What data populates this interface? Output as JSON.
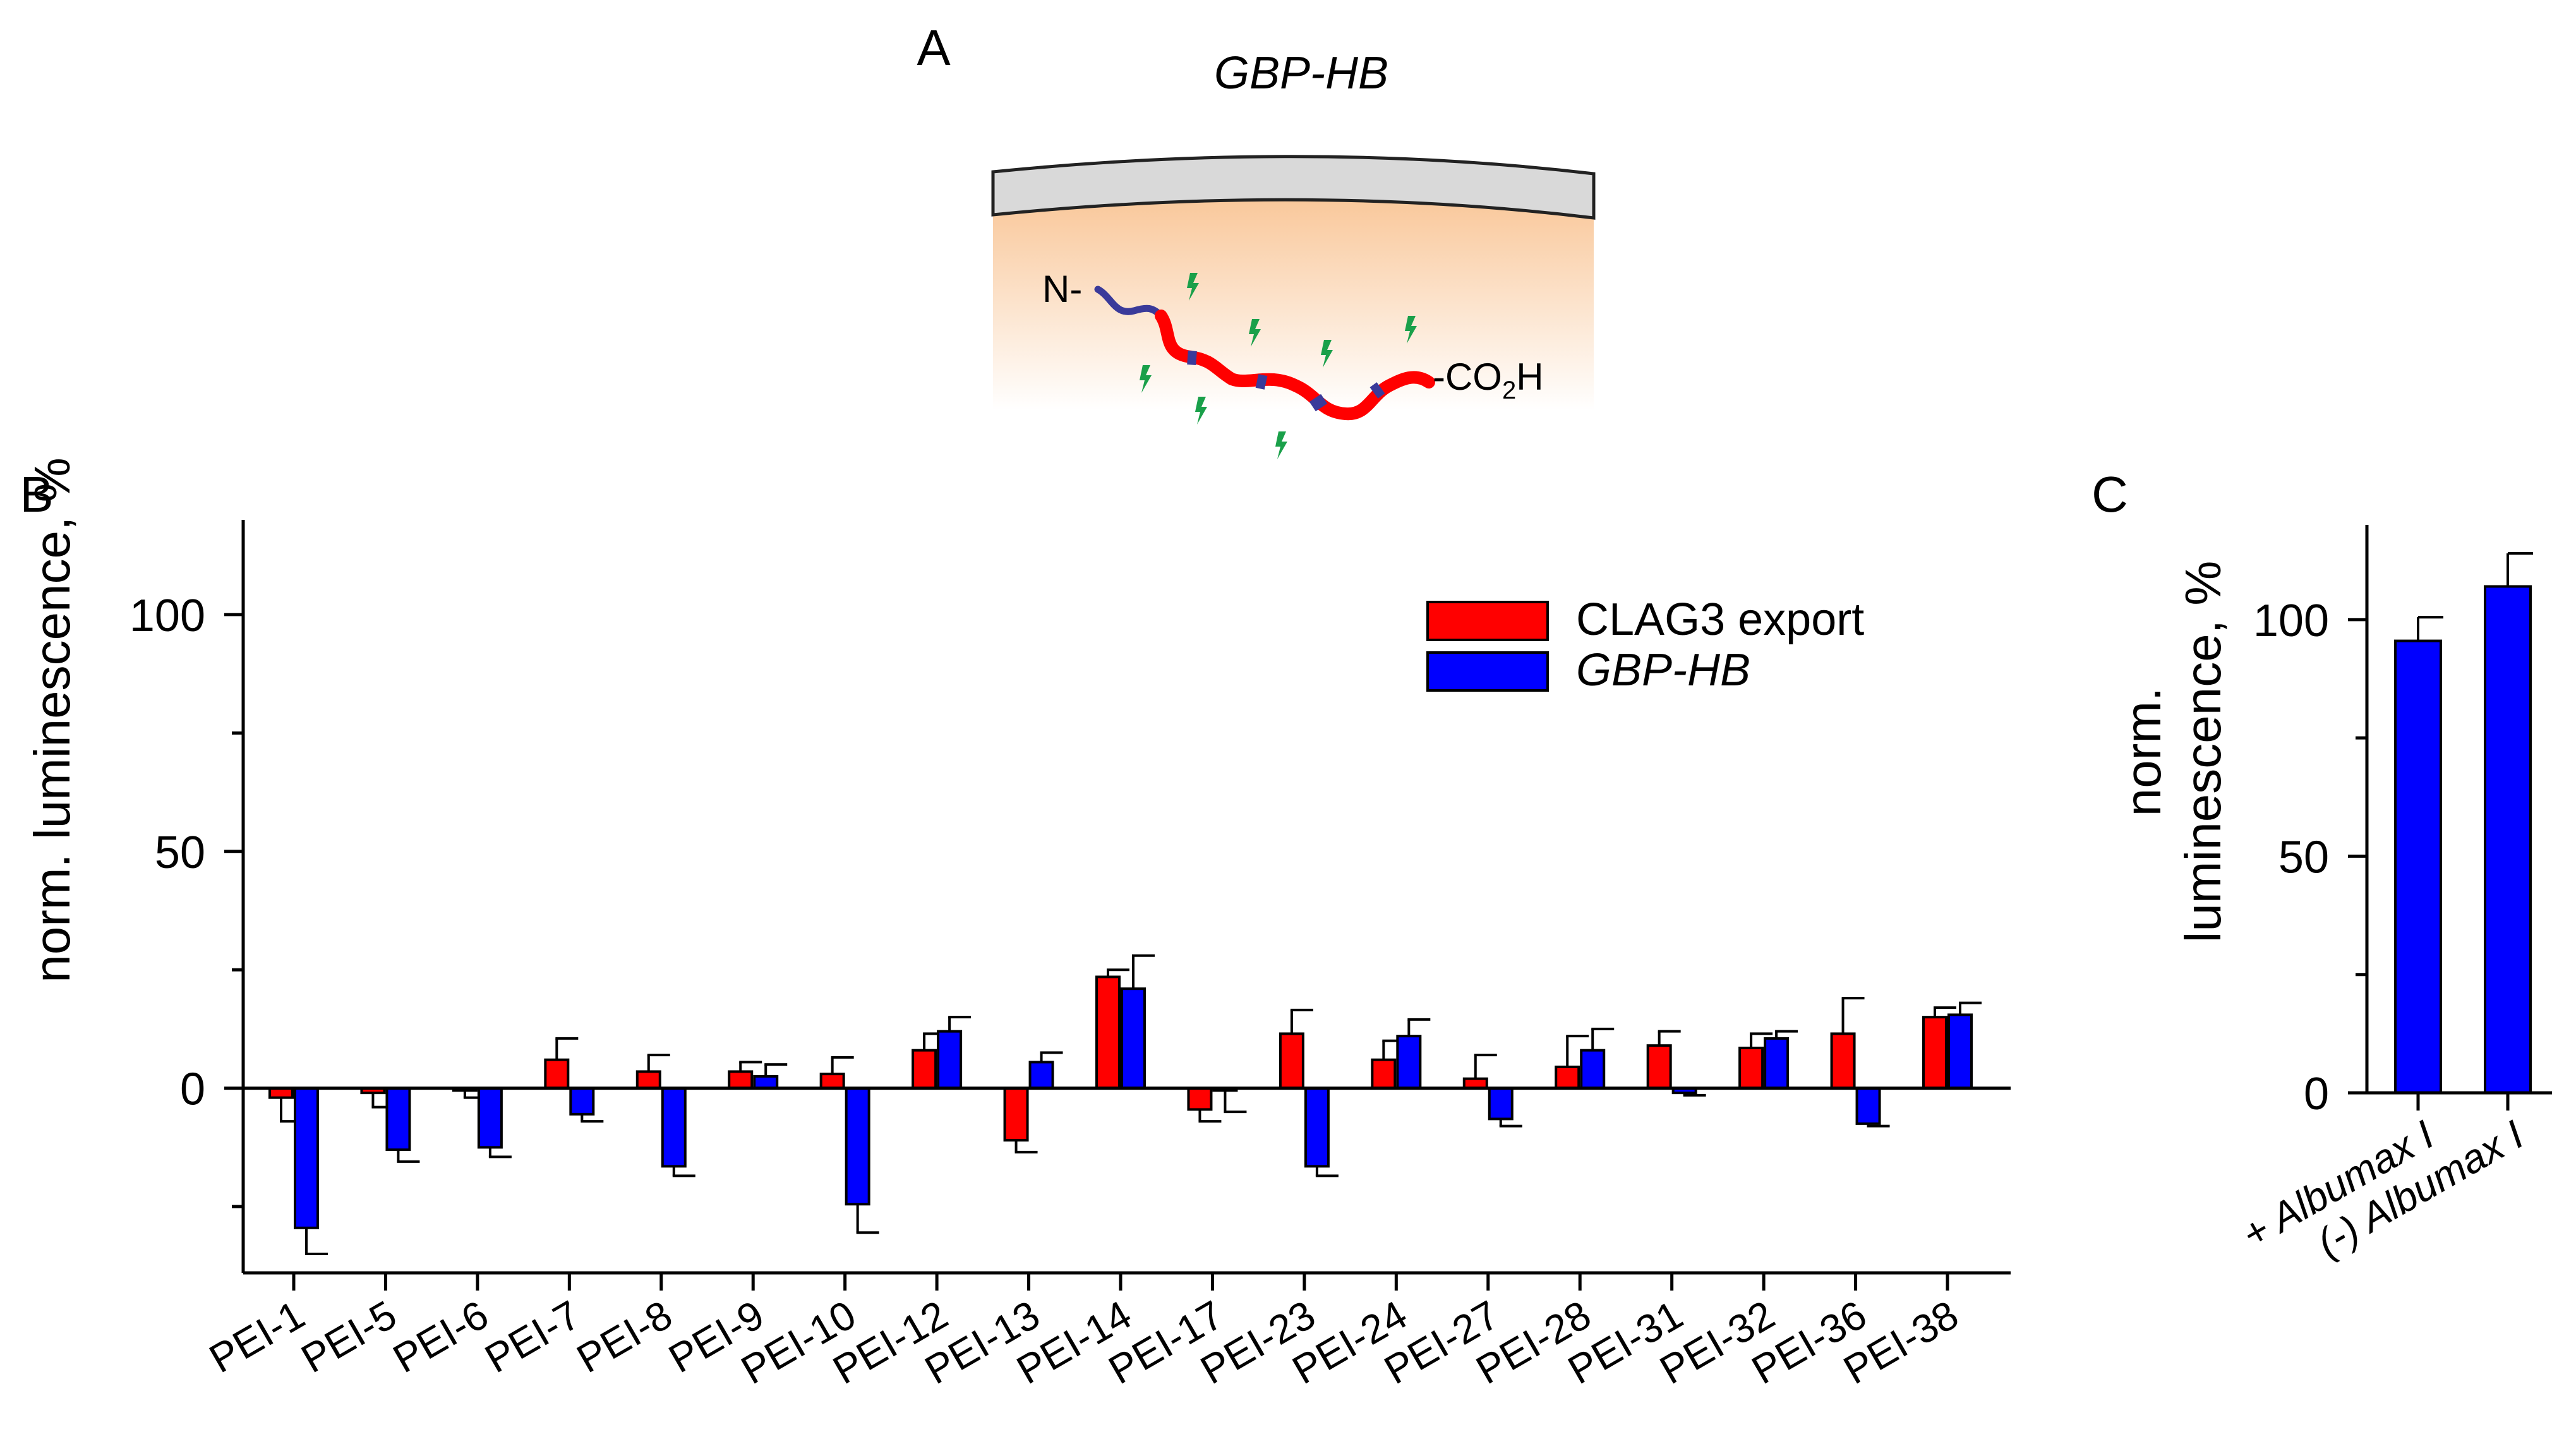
{
  "panel_a": {
    "label": "A",
    "title": "GBP-HB",
    "n_term": "N-",
    "c_term_prefix": "-CO",
    "c_term_sub": "2",
    "c_term_suffix": "H"
  },
  "colors": {
    "clag3": "#ff0000",
    "gbp": "#0000ff",
    "membrane": "#d9d9d9",
    "cytosol": "#f9c89b",
    "chain_blue": "#3a3a9a",
    "bolt": "#1aa04a"
  },
  "chart_data": [
    {
      "panel_label": "B",
      "type": "bar",
      "ylabel": "norm. luminescence, %",
      "ylim": [
        -39,
        120
      ],
      "yticks": [
        0,
        50,
        100
      ],
      "legend_position": "top-right",
      "categories": [
        "PEI-1",
        "PEI-5",
        "PEI-6",
        "PEI-7",
        "PEI-8",
        "PEI-9",
        "PEI-10",
        "PEI-12",
        "PEI-13",
        "PEI-14",
        "PEI-17",
        "PEI-23",
        "PEI-24",
        "PEI-27",
        "PEI-28",
        "PEI-31",
        "PEI-32",
        "PEI-36",
        "PEI-38"
      ],
      "series": [
        {
          "name": "CLAG3 export",
          "italic": false,
          "color": "#ff0000",
          "values": [
            -2,
            -1,
            -0.5,
            6,
            3.5,
            3.5,
            3,
            8,
            -11,
            23.5,
            -4.5,
            11.5,
            6,
            2,
            4.5,
            9,
            8.5,
            11.5,
            15
          ],
          "errors": [
            5,
            3,
            1.5,
            4.5,
            3.5,
            2,
            3.5,
            3.5,
            2.5,
            1.5,
            2.5,
            5,
            4,
            5,
            6.5,
            3,
            3,
            7.5,
            2
          ]
        },
        {
          "name": "GBP-HB",
          "italic": true,
          "color": "#0000ff",
          "values": [
            -29.5,
            -13,
            -12.5,
            -5.5,
            -16.5,
            2.5,
            -24.5,
            12,
            5.5,
            21,
            -0.5,
            -16.5,
            11,
            -6.5,
            8,
            -1,
            10.5,
            -7.5,
            15.5
          ],
          "errors": [
            5.5,
            2.5,
            2,
            1.5,
            2,
            2.5,
            6,
            3,
            2,
            7,
            4.5,
            2,
            3.5,
            1.5,
            4.5,
            0.5,
            1.5,
            0.5,
            2.5
          ]
        }
      ]
    },
    {
      "panel_label": "C",
      "type": "bar",
      "ylabel_line1": "norm.",
      "ylabel_line2": "luminescence, %",
      "ylim": [
        0,
        120
      ],
      "yticks": [
        0,
        50,
        100
      ],
      "categories": [
        "+ Albumax I",
        "(-) Albumax I"
      ],
      "values": [
        95.5,
        107
      ],
      "errors": [
        5,
        7
      ],
      "color": "#0000ff"
    }
  ]
}
